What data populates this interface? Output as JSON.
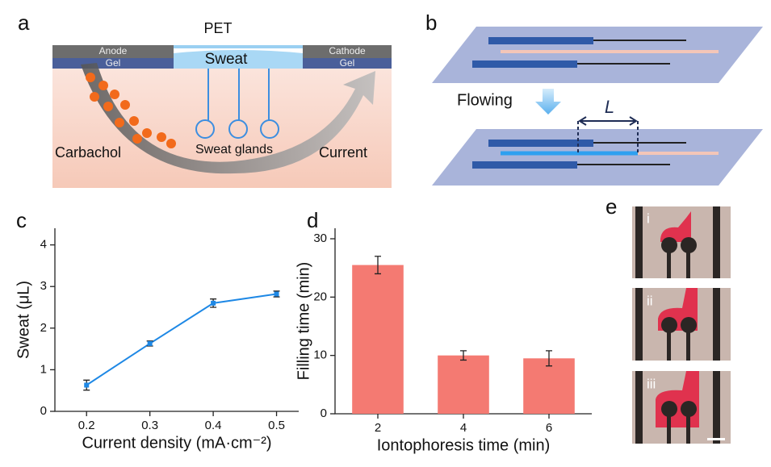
{
  "panels": {
    "a": {
      "label": "a",
      "top": "PET",
      "anode": "Anode",
      "anode_gel": "Gel",
      "sweat": "Sweat",
      "cathode": "Cathode",
      "cathode_gel": "Gel",
      "carbachol": "Carbachol",
      "glands": "Sweat glands",
      "current": "Current"
    },
    "b": {
      "label": "b",
      "flowing": "Flowing",
      "length": "L"
    },
    "c": {
      "label": "c"
    },
    "d": {
      "label": "d"
    },
    "e": {
      "label": "e",
      "photos": [
        "i",
        "ii",
        "iii"
      ]
    }
  },
  "chart_data": [
    {
      "type": "line",
      "x": [
        0.2,
        0.3,
        0.4,
        0.5
      ],
      "values": [
        0.63,
        1.63,
        2.6,
        2.82
      ],
      "errors": [
        0.12,
        0.06,
        0.1,
        0.07
      ],
      "color": "#1e88e5",
      "xlim": [
        0.15,
        0.535
      ],
      "ylim": [
        0,
        4.4
      ],
      "xticks": [
        0.2,
        0.3,
        0.4,
        0.5
      ],
      "yticks": [
        0,
        1,
        2,
        3,
        4
      ],
      "x_label": "Current density (mA·cm⁻²)",
      "y_label": "Sweat (μL)"
    },
    {
      "type": "bar",
      "categories": [
        "2",
        "4",
        "6"
      ],
      "values": [
        25.5,
        10,
        9.5
      ],
      "errors": [
        1.5,
        0.8,
        1.3
      ],
      "color": "#f47a72",
      "ylim": [
        0,
        31.8
      ],
      "yticks": [
        0,
        10,
        20,
        30
      ],
      "x_label": "Iontophoresis time (min)",
      "y_label": "Filling time (min)"
    }
  ]
}
